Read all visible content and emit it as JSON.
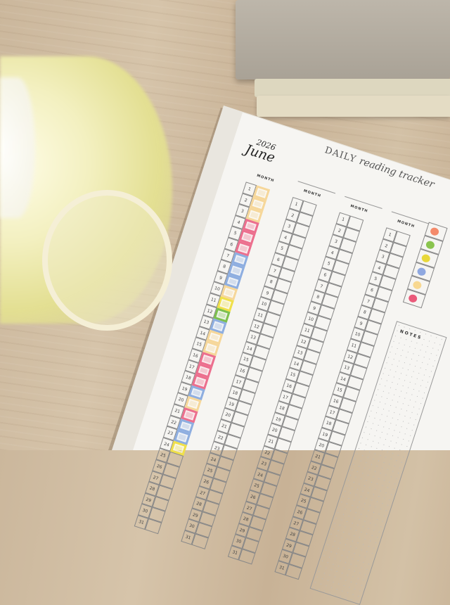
{
  "planner": {
    "title_caps": "DAILY",
    "title_script": "reading tracker",
    "year": "2026",
    "month": "June",
    "month_label": "MONTH",
    "notes_label": "NOTES",
    "days": 31,
    "colors": {
      "peach": "#f6d79a",
      "pink": "#ec6f8e",
      "blue": "#8eaee0",
      "yellow": "#f0e04a",
      "green": "#7cc04e"
    },
    "june_fills": [
      "peach",
      "peach",
      "peach",
      "pink",
      "pink",
      "pink",
      "blue",
      "blue",
      "blue",
      "peach",
      "yellow",
      "green",
      "blue",
      "peach",
      "peach",
      "pink",
      "pink",
      "pink",
      "blue",
      "peach",
      "pink",
      "blue",
      "blue",
      "yellow"
    ],
    "legend_dots": [
      "#f48a6a",
      "#8ac44e",
      "#e8d83a",
      "#8fa8e0",
      "#f8d890",
      "#ea5a7a"
    ]
  }
}
